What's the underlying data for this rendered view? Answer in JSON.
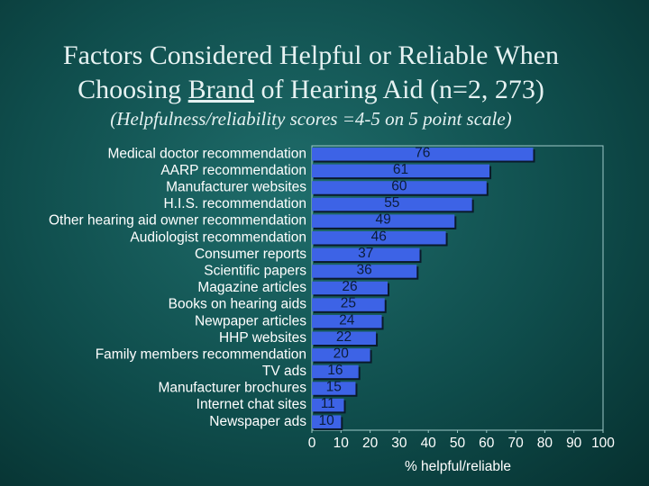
{
  "chart_data": {
    "type": "barh",
    "title": {
      "line1": "Factors Considered Helpful or Reliable When",
      "line2_before": "Choosing",
      "line2_emphasis": "Brand",
      "line2_after": "of Hearing Aid (n=2, 273)"
    },
    "subtitle": "(Helpfulness/reliability scores =4-5 on 5 point scale)",
    "categories": [
      "Medical doctor recommendation",
      "AARP recommendation",
      "Manufacturer websites",
      "H.I.S. recommendation",
      "Other hearing aid owner recommendation",
      "Audiologist recommendation",
      "Consumer reports",
      "Scientific papers",
      "Magazine articles",
      "Books on hearing aids",
      "Newpaper articles",
      "HHP websites",
      "Family members recommendation",
      "TV ads",
      "Manufacturer brochures",
      "Internet chat sites",
      "Newspaper ads"
    ],
    "values": [
      76,
      61,
      60,
      55,
      49,
      46,
      37,
      36,
      26,
      25,
      24,
      22,
      20,
      16,
      15,
      11,
      10
    ],
    "color": "#3d63e6",
    "xlabel": "% helpful/reliable",
    "xlim": [
      0,
      100
    ],
    "xticks": [
      0,
      10,
      20,
      30,
      40,
      50,
      60,
      70,
      80,
      90,
      100
    ]
  }
}
